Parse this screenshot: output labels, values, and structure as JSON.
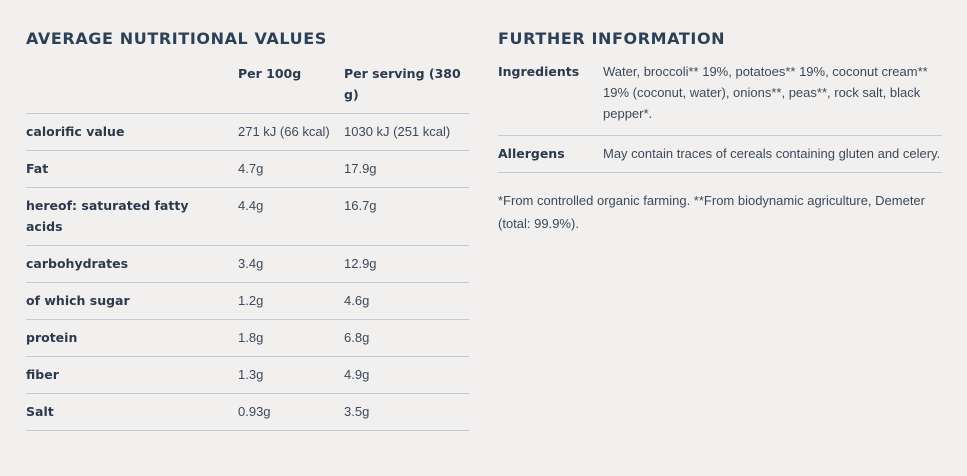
{
  "nutrition": {
    "title": "AVERAGE NUTRITIONAL VALUES",
    "headers": [
      "",
      "Per 100g",
      "Per serving (380 g)"
    ],
    "rows": [
      {
        "label": "calorific value",
        "per100": "271 kJ (66 kcal)",
        "perServing": "1030 kJ (251 kcal)"
      },
      {
        "label": "Fat",
        "per100": "4.7g",
        "perServing": "17.9g"
      },
      {
        "label": "hereof: saturated fatty acids",
        "per100": "4.4g",
        "perServing": "16.7g"
      },
      {
        "label": "carbohydrates",
        "per100": "3.4g",
        "perServing": "12.9g"
      },
      {
        "label": "of which sugar",
        "per100": "1.2g",
        "perServing": "4.6g"
      },
      {
        "label": "protein",
        "per100": "1.8g",
        "perServing": "6.8g"
      },
      {
        "label": "fiber",
        "per100": "1.3g",
        "perServing": "4.9g"
      },
      {
        "label": "Salt",
        "per100": "0.93g",
        "perServing": "3.5g"
      }
    ]
  },
  "further": {
    "title": "FURTHER INFORMATION",
    "ingredients_label": "Ingredients",
    "ingredients_text": "Water, broccoli** 19%, potatoes** 19%, coconut cream** 19% (coconut, water), onions**, peas**, rock salt, black pepper*.",
    "allergens_label": "Allergens",
    "allergens_text": "May contain traces of cereals containing gluten and celery.",
    "footnote": "*From controlled organic farming. **From biodynamic agriculture, Demeter (total: 99.9%)."
  }
}
